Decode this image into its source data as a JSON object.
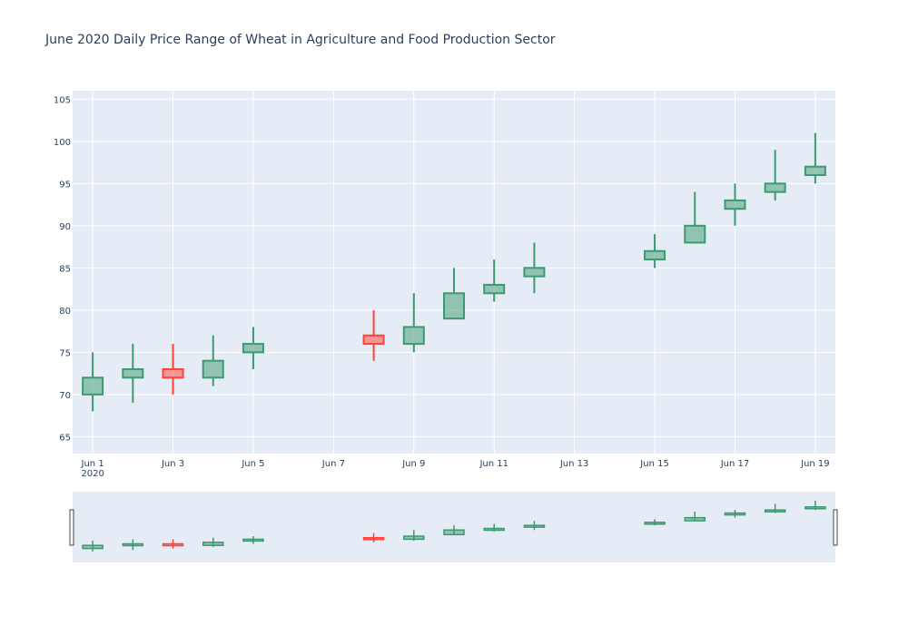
{
  "chart_data": {
    "type": "candlestick",
    "title": "June 2020 Daily Price Range of Wheat in Agriculture and Food Production Sector",
    "xlabel": "",
    "ylabel": "",
    "ylim": [
      63,
      106
    ],
    "yticks": [
      65,
      70,
      75,
      80,
      85,
      90,
      95,
      100,
      105
    ],
    "xticks": [
      "Jun 1",
      "Jun 3",
      "Jun 5",
      "Jun 7",
      "Jun 9",
      "Jun 11",
      "Jun 13",
      "Jun 15",
      "Jun 17",
      "Jun 19"
    ],
    "xtick_sub": "2020",
    "range_slider": true,
    "increasing_color": "#3D9970",
    "decreasing_color": "#FF4136",
    "candles": [
      {
        "date": "2020-06-01",
        "open": 70,
        "high": 75,
        "low": 68,
        "close": 72
      },
      {
        "date": "2020-06-02",
        "open": 72,
        "high": 76,
        "low": 69,
        "close": 73
      },
      {
        "date": "2020-06-03",
        "open": 73,
        "high": 76,
        "low": 70,
        "close": 72
      },
      {
        "date": "2020-06-04",
        "open": 72,
        "high": 77,
        "low": 71,
        "close": 74
      },
      {
        "date": "2020-06-05",
        "open": 75,
        "high": 78,
        "low": 73,
        "close": 76
      },
      {
        "date": "2020-06-08",
        "open": 77,
        "high": 80,
        "low": 74,
        "close": 76
      },
      {
        "date": "2020-06-09",
        "open": 76,
        "high": 82,
        "low": 75,
        "close": 78
      },
      {
        "date": "2020-06-10",
        "open": 79,
        "high": 85,
        "low": 79,
        "close": 82
      },
      {
        "date": "2020-06-11",
        "open": 82,
        "high": 86,
        "low": 81,
        "close": 83
      },
      {
        "date": "2020-06-12",
        "open": 84,
        "high": 88,
        "low": 82,
        "close": 85
      },
      {
        "date": "2020-06-15",
        "open": 86,
        "high": 89,
        "low": 85,
        "close": 87
      },
      {
        "date": "2020-06-16",
        "open": 88,
        "high": 94,
        "low": 88,
        "close": 90
      },
      {
        "date": "2020-06-17",
        "open": 92,
        "high": 95,
        "low": 90,
        "close": 93
      },
      {
        "date": "2020-06-18",
        "open": 94,
        "high": 99,
        "low": 93,
        "close": 95
      },
      {
        "date": "2020-06-19",
        "open": 96,
        "high": 101,
        "low": 95,
        "close": 97
      }
    ]
  }
}
